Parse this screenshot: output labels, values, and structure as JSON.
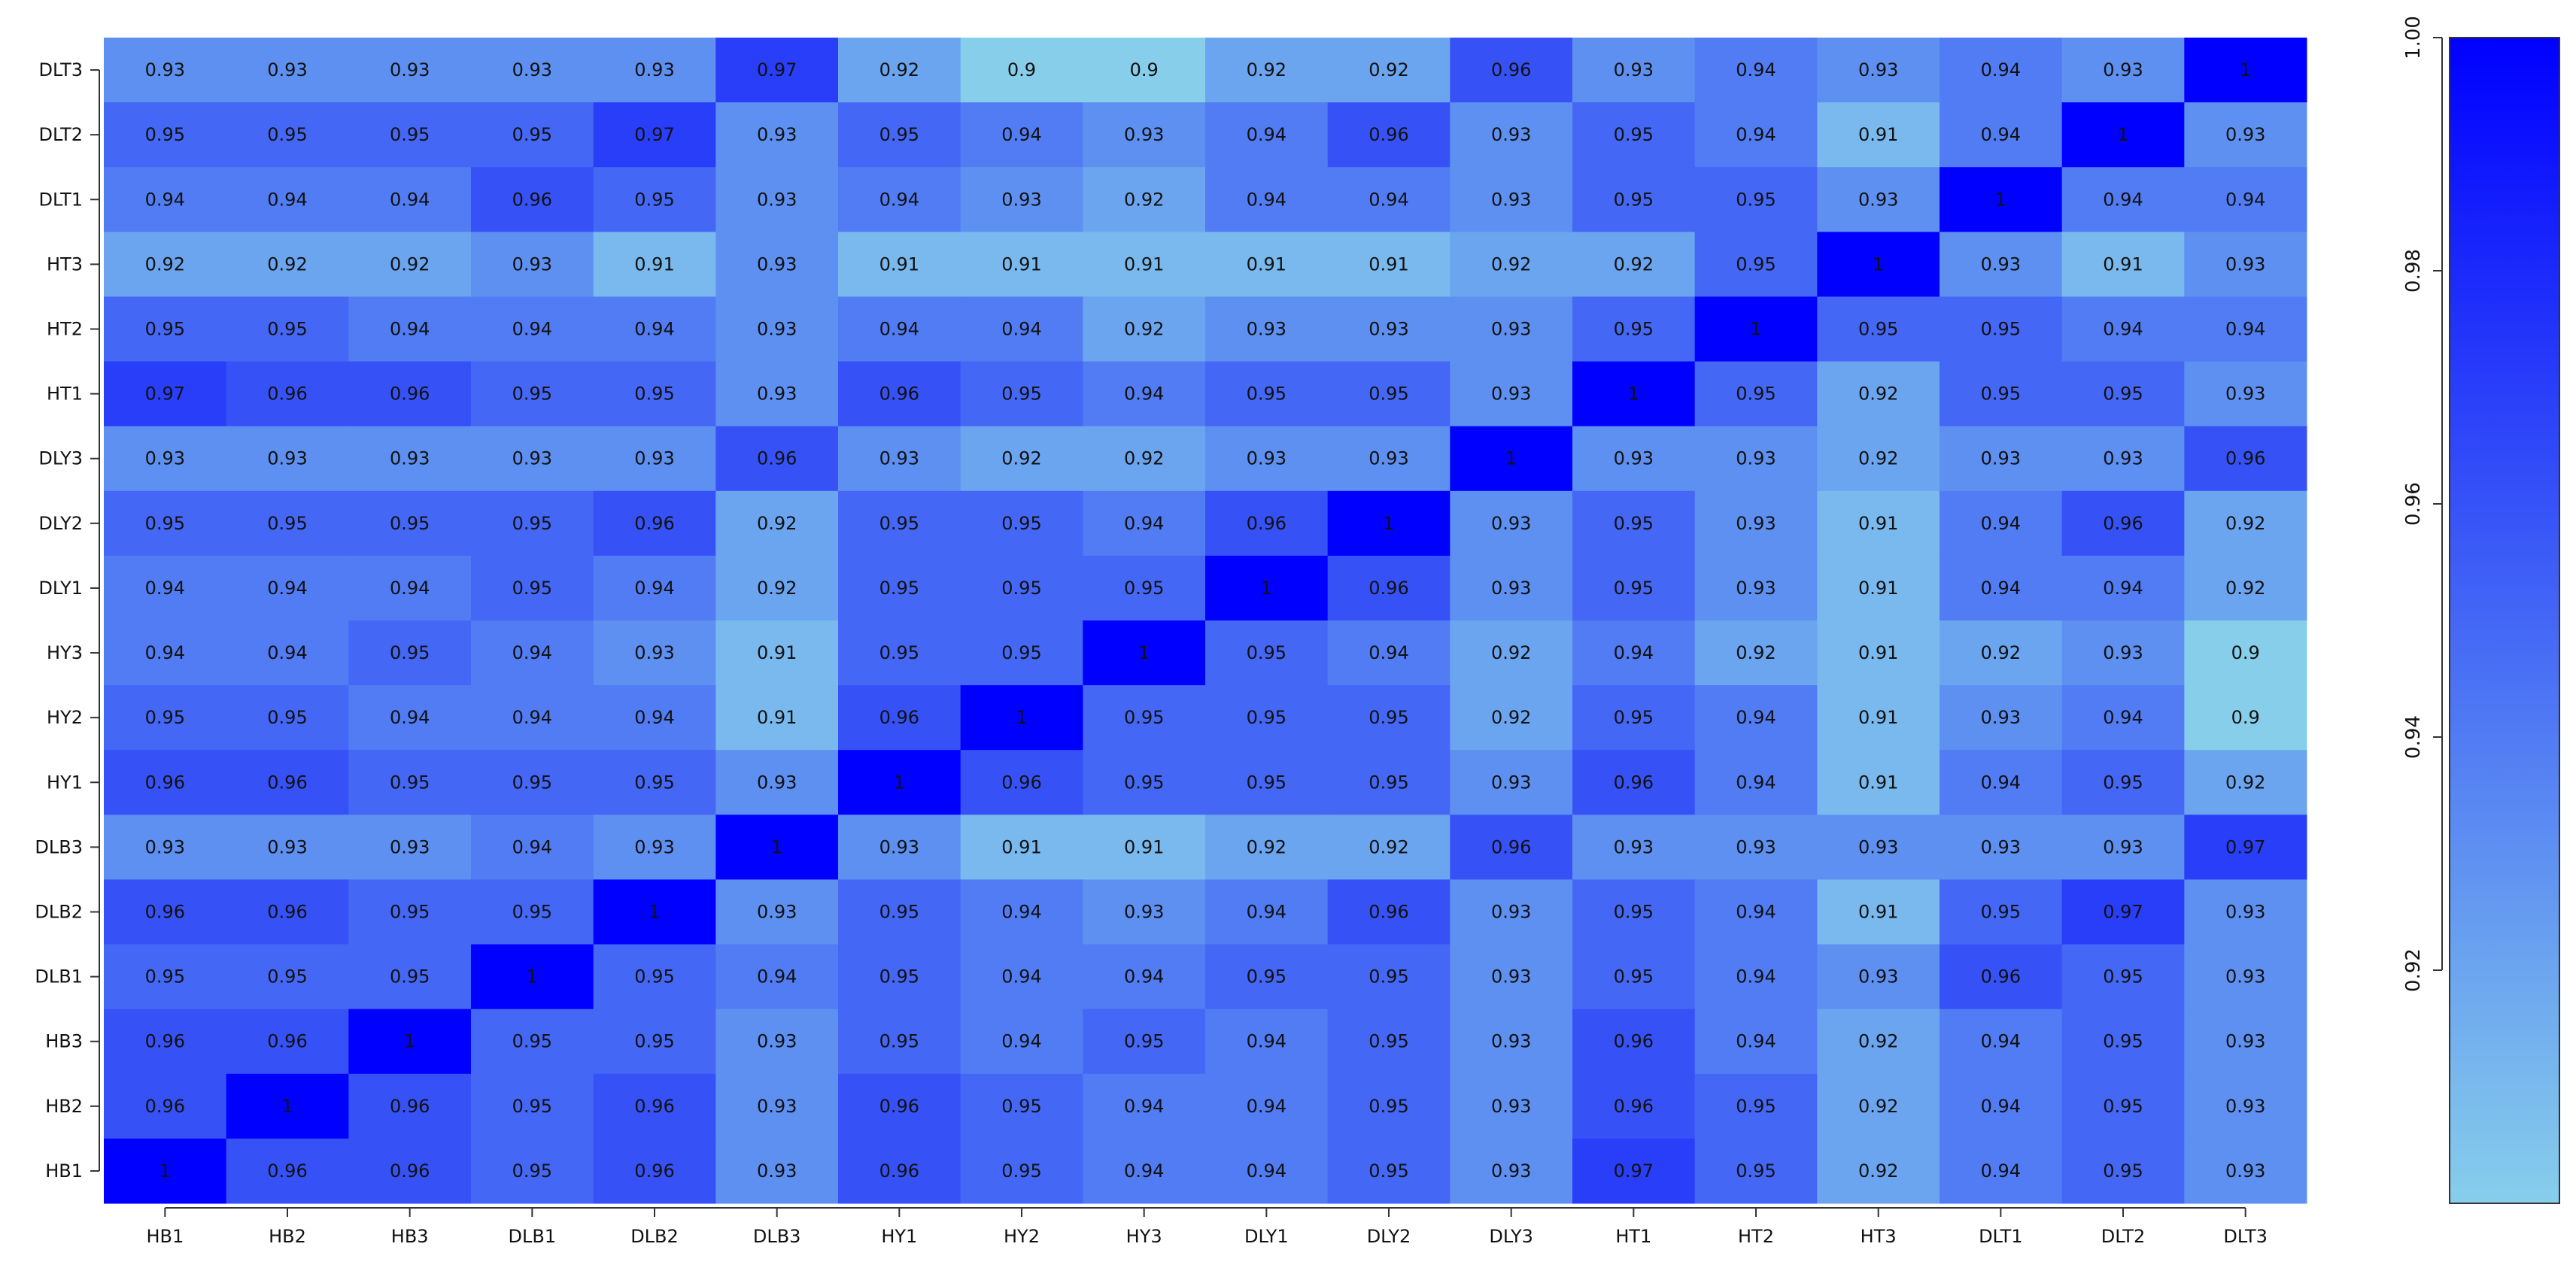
{
  "chart_data": {
    "type": "heatmap",
    "title": "",
    "xlabel": "",
    "ylabel": "",
    "x_categories": [
      "HB1",
      "HB2",
      "HB3",
      "DLB1",
      "DLB2",
      "DLB3",
      "HY1",
      "HY2",
      "HY3",
      "DLY1",
      "DLY2",
      "DLY3",
      "HT1",
      "HT2",
      "HT3",
      "DLT1",
      "DLT2",
      "DLT3"
    ],
    "y_categories_top_to_bottom": [
      "DLT3",
      "DLT2",
      "DLT1",
      "HT3",
      "HT2",
      "HT1",
      "DLY3",
      "DLY2",
      "DLY1",
      "HY3",
      "HY2",
      "HY1",
      "DLB3",
      "DLB2",
      "DLB1",
      "HB3",
      "HB2",
      "HB1"
    ],
    "values_top_to_bottom": [
      [
        0.93,
        0.93,
        0.93,
        0.93,
        0.93,
        0.97,
        0.92,
        0.9,
        0.9,
        0.92,
        0.92,
        0.96,
        0.93,
        0.94,
        0.93,
        0.94,
        0.93,
        1
      ],
      [
        0.95,
        0.95,
        0.95,
        0.95,
        0.97,
        0.93,
        0.95,
        0.94,
        0.93,
        0.94,
        0.96,
        0.93,
        0.95,
        0.94,
        0.91,
        0.94,
        1,
        0.93
      ],
      [
        0.94,
        0.94,
        0.94,
        0.96,
        0.95,
        0.93,
        0.94,
        0.93,
        0.92,
        0.94,
        0.94,
        0.93,
        0.95,
        0.95,
        0.93,
        1,
        0.94,
        0.94
      ],
      [
        0.92,
        0.92,
        0.92,
        0.93,
        0.91,
        0.93,
        0.91,
        0.91,
        0.91,
        0.91,
        0.91,
        0.92,
        0.92,
        0.95,
        1,
        0.93,
        0.91,
        0.93
      ],
      [
        0.95,
        0.95,
        0.94,
        0.94,
        0.94,
        0.93,
        0.94,
        0.94,
        0.92,
        0.93,
        0.93,
        0.93,
        0.95,
        1,
        0.95,
        0.95,
        0.94,
        0.94
      ],
      [
        0.97,
        0.96,
        0.96,
        0.95,
        0.95,
        0.93,
        0.96,
        0.95,
        0.94,
        0.95,
        0.95,
        0.93,
        1,
        0.95,
        0.92,
        0.95,
        0.95,
        0.93
      ],
      [
        0.93,
        0.93,
        0.93,
        0.93,
        0.93,
        0.96,
        0.93,
        0.92,
        0.92,
        0.93,
        0.93,
        1,
        0.93,
        0.93,
        0.92,
        0.93,
        0.93,
        0.96
      ],
      [
        0.95,
        0.95,
        0.95,
        0.95,
        0.96,
        0.92,
        0.95,
        0.95,
        0.94,
        0.96,
        1,
        0.93,
        0.95,
        0.93,
        0.91,
        0.94,
        0.96,
        0.92
      ],
      [
        0.94,
        0.94,
        0.94,
        0.95,
        0.94,
        0.92,
        0.95,
        0.95,
        0.95,
        1,
        0.96,
        0.93,
        0.95,
        0.93,
        0.91,
        0.94,
        0.94,
        0.92
      ],
      [
        0.94,
        0.94,
        0.95,
        0.94,
        0.93,
        0.91,
        0.95,
        0.95,
        1,
        0.95,
        0.94,
        0.92,
        0.94,
        0.92,
        0.91,
        0.92,
        0.93,
        0.9
      ],
      [
        0.95,
        0.95,
        0.94,
        0.94,
        0.94,
        0.91,
        0.96,
        1,
        0.95,
        0.95,
        0.95,
        0.92,
        0.95,
        0.94,
        0.91,
        0.93,
        0.94,
        0.9
      ],
      [
        0.96,
        0.96,
        0.95,
        0.95,
        0.95,
        0.93,
        1,
        0.96,
        0.95,
        0.95,
        0.95,
        0.93,
        0.96,
        0.94,
        0.91,
        0.94,
        0.95,
        0.92
      ],
      [
        0.93,
        0.93,
        0.93,
        0.94,
        0.93,
        1,
        0.93,
        0.91,
        0.91,
        0.92,
        0.92,
        0.96,
        0.93,
        0.93,
        0.93,
        0.93,
        0.93,
        0.97
      ],
      [
        0.96,
        0.96,
        0.95,
        0.95,
        1,
        0.93,
        0.95,
        0.94,
        0.93,
        0.94,
        0.96,
        0.93,
        0.95,
        0.94,
        0.91,
        0.95,
        0.97,
        0.93
      ],
      [
        0.95,
        0.95,
        0.95,
        1,
        0.95,
        0.94,
        0.95,
        0.94,
        0.94,
        0.95,
        0.95,
        0.93,
        0.95,
        0.94,
        0.93,
        0.96,
        0.95,
        0.93
      ],
      [
        0.96,
        0.96,
        1,
        0.95,
        0.95,
        0.93,
        0.95,
        0.94,
        0.95,
        0.94,
        0.95,
        0.93,
        0.96,
        0.94,
        0.92,
        0.94,
        0.95,
        0.93
      ],
      [
        0.96,
        1,
        0.96,
        0.95,
        0.96,
        0.93,
        0.96,
        0.95,
        0.94,
        0.94,
        0.95,
        0.93,
        0.96,
        0.95,
        0.92,
        0.94,
        0.95,
        0.93
      ],
      [
        1,
        0.96,
        0.96,
        0.95,
        0.96,
        0.93,
        0.96,
        0.95,
        0.94,
        0.94,
        0.95,
        0.93,
        0.97,
        0.95,
        0.92,
        0.94,
        0.95,
        0.93
      ]
    ],
    "color_scale": {
      "min": 0.9,
      "max": 1.0,
      "low_color": "#87CEEB",
      "high_color": "#0000FF",
      "ticks": [
        "0.92",
        "0.94",
        "0.96",
        "0.98",
        "1.00"
      ]
    },
    "legend": "right",
    "grid": false
  }
}
